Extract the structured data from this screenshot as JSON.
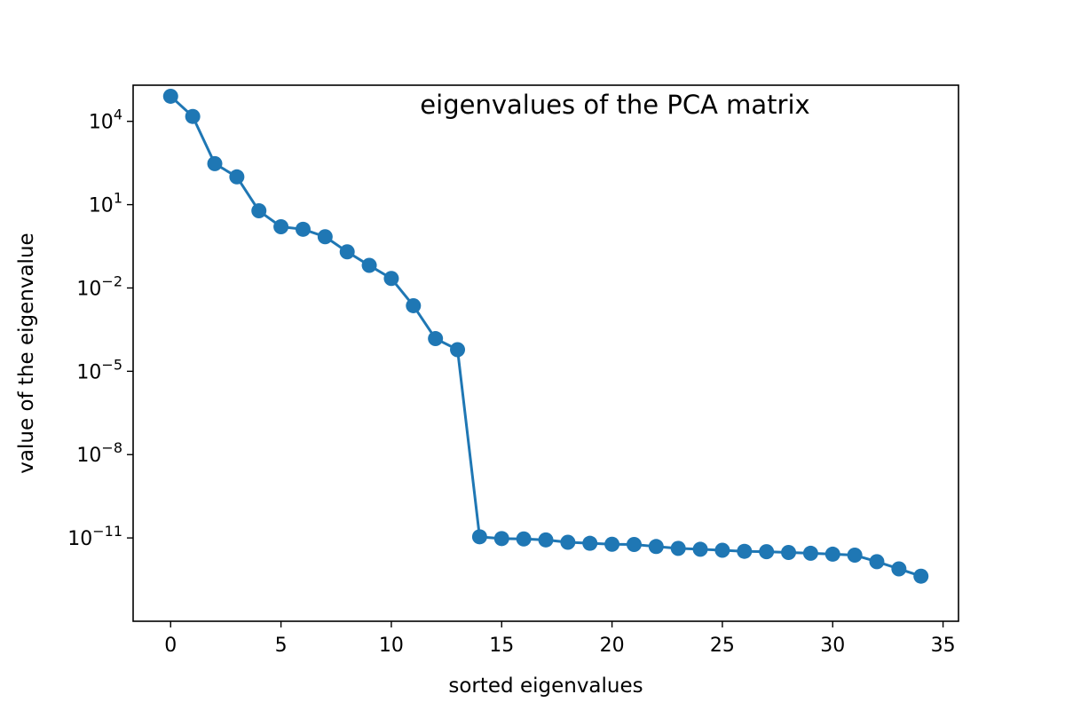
{
  "chart_data": {
    "type": "line",
    "title": "eigenvalues of the PCA matrix",
    "xlabel": "sorted eigenvalues",
    "ylabel": "value of the eigenvalue",
    "yscale": "log",
    "xlim": [
      -1.7,
      35.7
    ],
    "ylim": [
      1e-14,
      200000.0
    ],
    "grid": false,
    "x_ticks": [
      0,
      5,
      10,
      15,
      20,
      25,
      30,
      35
    ],
    "y_ticks": [
      {
        "value": 10000.0,
        "base": "10",
        "exp": "4"
      },
      {
        "value": 10.0,
        "base": "10",
        "exp": "1"
      },
      {
        "value": 0.01,
        "base": "10",
        "exp": "−2"
      },
      {
        "value": 1e-05,
        "base": "10",
        "exp": "−5"
      },
      {
        "value": 1e-08,
        "base": "10",
        "exp": "−8"
      },
      {
        "value": 1e-11,
        "base": "10",
        "exp": "−11"
      }
    ],
    "series": [
      {
        "color": "#1f77b4",
        "marker": "circle",
        "x": [
          0,
          1,
          2,
          3,
          4,
          5,
          6,
          7,
          8,
          9,
          10,
          11,
          12,
          13,
          14,
          15,
          16,
          17,
          18,
          19,
          20,
          21,
          22,
          23,
          24,
          25,
          26,
          27,
          28,
          29,
          30,
          31,
          32,
          33,
          34
        ],
        "y": [
          80000,
          15000,
          300,
          100,
          6,
          1.6,
          1.3,
          0.7,
          0.2,
          0.065,
          0.022,
          0.0023,
          0.00015,
          6e-05,
          1.1e-11,
          9.5e-12,
          9.2e-12,
          8.5e-12,
          7e-12,
          6.4e-12,
          5.9e-12,
          5.8e-12,
          4.9e-12,
          4.2e-12,
          3.9e-12,
          3.6e-12,
          3.3e-12,
          3.2e-12,
          3e-12,
          2.8e-12,
          2.6e-12,
          2.4e-12,
          1.4e-12,
          7.7e-13,
          4.2e-13
        ]
      }
    ]
  }
}
